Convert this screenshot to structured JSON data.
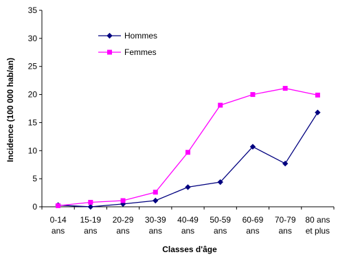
{
  "chart_data": {
    "type": "line",
    "xlabel": "Classes d'âge",
    "ylabel": "Incidence (100 000 hab/an)",
    "categories": [
      [
        "0-14",
        "ans"
      ],
      [
        "15-19",
        "ans"
      ],
      [
        "20-29",
        "ans"
      ],
      [
        "30-39",
        "ans"
      ],
      [
        "40-49",
        "ans"
      ],
      [
        "50-59",
        "ans"
      ],
      [
        "60-69",
        "ans"
      ],
      [
        "70-79",
        "ans"
      ],
      [
        "80 ans",
        "et plus"
      ]
    ],
    "ylim": [
      0,
      35
    ],
    "yticks": [
      0,
      5,
      10,
      15,
      20,
      25,
      30,
      35
    ],
    "grid": false,
    "legend_position": "top-left",
    "series": [
      {
        "name": "Hommes",
        "color": "#00007F",
        "marker": "diamond",
        "values": [
          0.3,
          0.0,
          0.5,
          1.1,
          3.5,
          4.4,
          10.7,
          7.7,
          16.8
        ]
      },
      {
        "name": "Femmes",
        "color": "#FF00FF",
        "marker": "square",
        "values": [
          0.2,
          0.8,
          1.1,
          2.6,
          9.7,
          18.1,
          20.0,
          21.1,
          19.9
        ]
      }
    ]
  }
}
